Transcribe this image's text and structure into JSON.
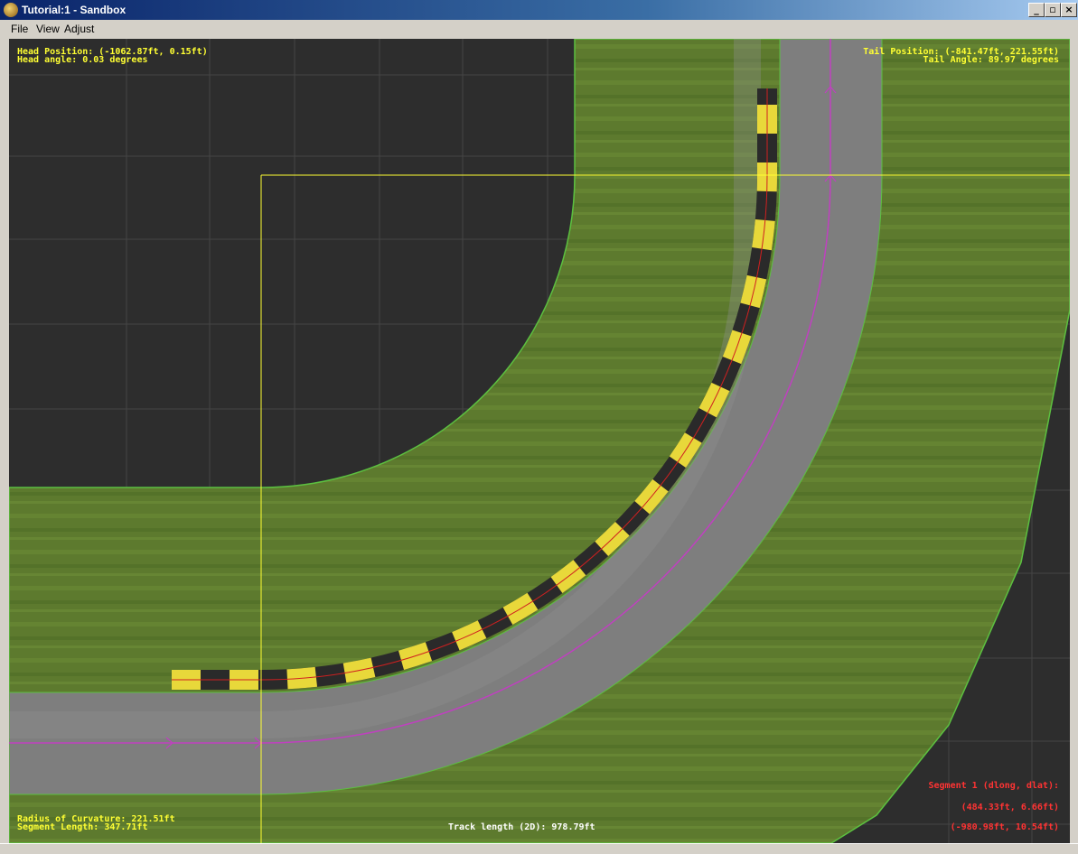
{
  "window": {
    "title": "Tutorial:1 - Sandbox",
    "minimize_label": "_",
    "maximize_label": "▫",
    "close_label": "×"
  },
  "menu": {
    "items": [
      {
        "label": "File"
      },
      {
        "label": "View"
      },
      {
        "label": "Adjust"
      }
    ]
  },
  "hud": {
    "head_position": "Head Position: (-1062.87ft, 0.15ft)",
    "head_angle": "Head angle: 0.03 degrees",
    "tail_position": "Tail Position: (-841.47ft, 221.55ft)",
    "tail_angle": "Tail Angle: 89.97 degrees",
    "radius_of_curvature": "Radius of Curvature: 221.51ft",
    "segment_length": "Segment Length: 347.71ft",
    "track_length": "Track length (2D): 978.79ft",
    "segment_info": "Segment 1 (dlong, dlat):",
    "segment_offset": "(484.33ft, 6.66ft)",
    "segment_offset_2": "(-980.98ft, 10.54ft)"
  },
  "colors": {
    "background": "#2d2d2d",
    "grass": "#5d7a2e",
    "asphalt": "#808080",
    "curb_yellow": "#e8d83a",
    "curb_dark": "#2a2a2a",
    "centerline": "#c040c0",
    "guide": "#ffff33"
  }
}
